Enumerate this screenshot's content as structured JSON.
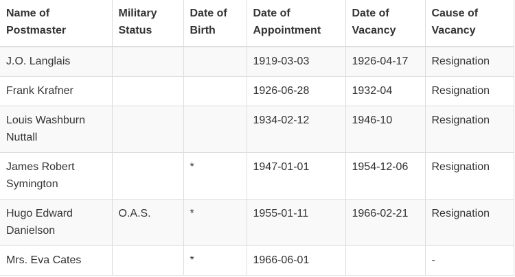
{
  "table": {
    "header": [
      "Name of Postmaster",
      "Military Status",
      "Date of Birth",
      "Date of Appointment",
      "Date of Vacancy",
      "Cause of Vacancy"
    ],
    "rows": [
      [
        "J.O. Langlais",
        null,
        null,
        "1919-03-03",
        "1926-04-17",
        "Resignation"
      ],
      [
        "Frank Krafner",
        null,
        null,
        "1926-06-28",
        "1932-04",
        "Resignation"
      ],
      [
        "Louis Washburn Nuttall",
        null,
        null,
        "1934-02-12",
        "1946-10",
        "Resignation"
      ],
      [
        "James Robert Symington",
        null,
        "*",
        "1947-01-01",
        "1954-12-06",
        "Resignation"
      ],
      [
        "Hugo Edward Danielson",
        "O.A.S.",
        "*",
        "1955-01-11",
        "1966-02-21",
        "Resignation"
      ],
      [
        "Mrs. Eva Cates",
        null,
        "*",
        "1966-06-01",
        null,
        "-"
      ]
    ]
  }
}
